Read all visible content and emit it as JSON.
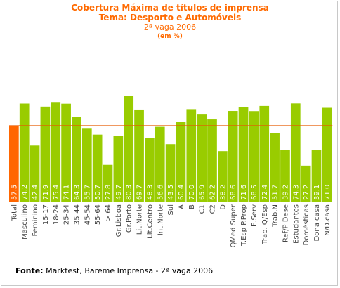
{
  "header": {
    "title": "Cobertura Máxima de títulos de imprensa",
    "subtitle": "Tema: Desporto e Automóveis",
    "wave": "2ª vaga 2006",
    "unit": "(em %)"
  },
  "footer": {
    "label": "Fonte:",
    "text": " Marktest, Bareme Imprensa - 2ª vaga 2006"
  },
  "chart_data": {
    "type": "bar",
    "categories": [
      "Total",
      "Masculino",
      "Feminino",
      "15-17",
      "18-24",
      "25-34",
      "35-44",
      "45-54",
      "55-64",
      "> 64",
      "Gr.Lisboa",
      "Gr.Porto",
      "Lit.Norte",
      "Lit.Centro",
      "Int.Norte",
      "Sul",
      "A",
      "B",
      "C1",
      "C2",
      "D",
      "QMed Super",
      "T.Esp P.Prop",
      "E.Serv",
      "Trab. Q/Esp",
      "Trab.N",
      "Ref/P Dese",
      "Estudantes",
      "Domésticas",
      "Dona casa",
      "N/D.casa"
    ],
    "value_labels": [
      "57.5",
      "74.2",
      "42.4",
      "71.9",
      "75.4",
      "74.1",
      "64.3",
      "55.7",
      "50.7",
      "27.8",
      "49.7",
      "80.3",
      "69.7",
      "48.3",
      "56.6",
      "43.5",
      "60.4",
      "70.0",
      "65.9",
      "62.2",
      "38.2",
      "68.6",
      "71.6",
      "68.5",
      "72.4",
      "51.7",
      "39.2",
      "74.3",
      "27.2",
      "39.1",
      "71.0"
    ],
    "values": [
      57.5,
      74.2,
      42.4,
      71.9,
      75.4,
      74.1,
      64.3,
      55.7,
      50.7,
      27.8,
      49.7,
      80.3,
      69.7,
      48.3,
      56.6,
      43.5,
      60.4,
      70.0,
      65.9,
      62.2,
      38.2,
      68.6,
      71.6,
      68.5,
      72.4,
      51.7,
      39.2,
      74.3,
      27.2,
      39.1,
      71.0
    ],
    "reference_line": 57.5,
    "ylim": [
      0,
      90
    ],
    "colors": {
      "total": "#ff6600",
      "bars": "#99cc00",
      "reference": "#e85a00",
      "value_text": "#ffffff"
    }
  }
}
